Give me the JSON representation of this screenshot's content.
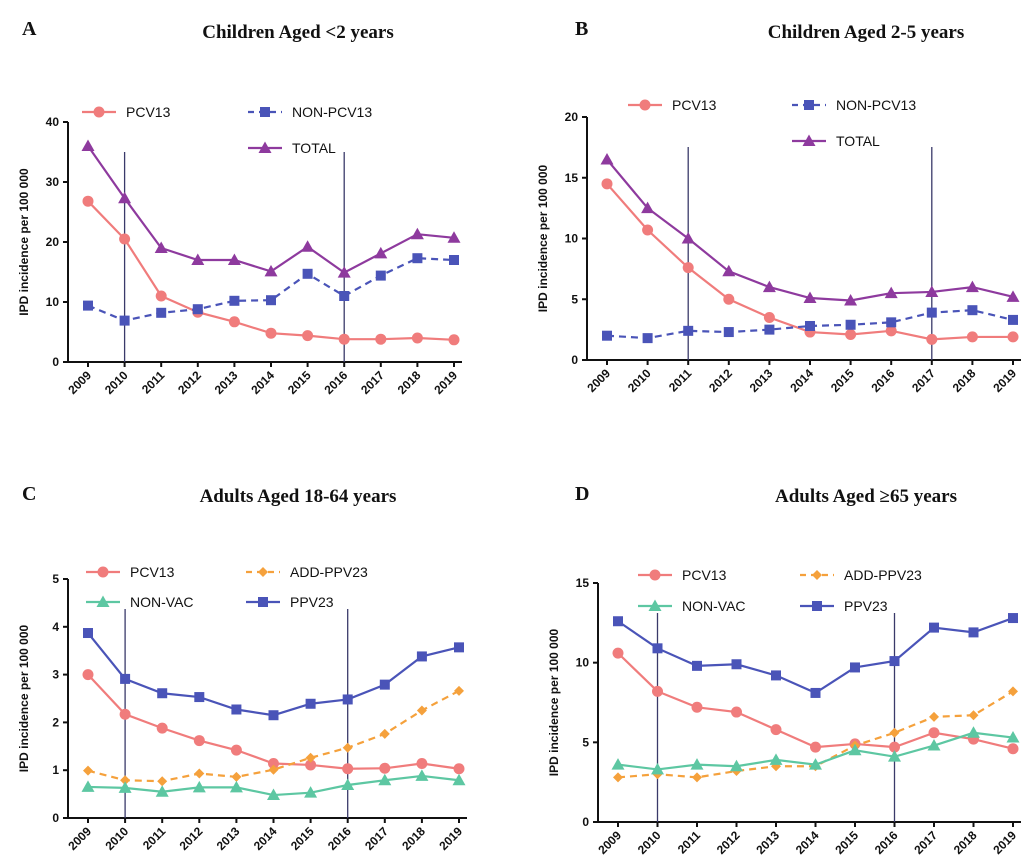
{
  "chart_data": [
    {
      "type": "line",
      "letter": "A",
      "title": "Children Aged <2 years",
      "ylabel": "IPD incidence per 100 000",
      "xlabel": "",
      "x": [
        "2009",
        "2010",
        "2011",
        "2012",
        "2013",
        "2014",
        "2015",
        "2016",
        "2017",
        "2018",
        "2019"
      ],
      "ylim": [
        0,
        40
      ],
      "yticks": [
        "0",
        "10",
        "20",
        "30",
        "40"
      ],
      "vlines": [
        "2010",
        "2016"
      ],
      "legend_position": "top",
      "series": [
        {
          "name": "PCV13",
          "color": "#f07c7c",
          "marker": "circle",
          "dashed": false,
          "values": [
            26.8,
            20.5,
            11.0,
            8.3,
            6.7,
            4.8,
            4.4,
            3.8,
            3.8,
            4.0,
            3.7
          ]
        },
        {
          "name": "NON-PCV13",
          "color": "#4a54b8",
          "marker": "square",
          "dashed": true,
          "values": [
            9.4,
            6.9,
            8.2,
            8.8,
            10.2,
            10.3,
            14.7,
            11.0,
            14.4,
            17.3,
            17.0
          ]
        },
        {
          "name": "TOTAL",
          "color": "#8e3a9e",
          "marker": "triangle",
          "dashed": false,
          "values": [
            36.0,
            27.3,
            19.0,
            17.0,
            17.0,
            15.1,
            19.2,
            14.9,
            18.1,
            21.3,
            20.7
          ]
        }
      ]
    },
    {
      "type": "line",
      "letter": "B",
      "title": "Children Aged 2-5 years",
      "ylabel": "IPD incidence per 100 000",
      "xlabel": "",
      "x": [
        "2009",
        "2010",
        "2011",
        "2012",
        "2013",
        "2014",
        "2015",
        "2016",
        "2017",
        "2018",
        "2019"
      ],
      "ylim": [
        0,
        20
      ],
      "yticks": [
        "0",
        "5",
        "10",
        "15",
        "20"
      ],
      "vlines": [
        "2011",
        "2017"
      ],
      "legend_position": "top",
      "series": [
        {
          "name": "PCV13",
          "color": "#f07c7c",
          "marker": "circle",
          "dashed": false,
          "values": [
            14.5,
            10.7,
            7.6,
            5.0,
            3.5,
            2.3,
            2.1,
            2.4,
            1.7,
            1.9,
            1.9
          ]
        },
        {
          "name": "NON-PCV13",
          "color": "#4a54b8",
          "marker": "square",
          "dashed": true,
          "values": [
            2.0,
            1.8,
            2.4,
            2.3,
            2.5,
            2.8,
            2.9,
            3.1,
            3.9,
            4.1,
            3.3
          ]
        },
        {
          "name": "TOTAL",
          "color": "#8e3a9e",
          "marker": "triangle",
          "dashed": false,
          "values": [
            16.5,
            12.5,
            10.0,
            7.3,
            6.0,
            5.1,
            4.9,
            5.5,
            5.6,
            6.0,
            5.2
          ]
        }
      ]
    },
    {
      "type": "line",
      "letter": "C",
      "title": "Adults Aged 18-64 years",
      "ylabel": "IPD incidence per 100 000",
      "xlabel": "",
      "x": [
        "2009",
        "2010",
        "2011",
        "2012",
        "2013",
        "2014",
        "2015",
        "2016",
        "2017",
        "2018",
        "2019"
      ],
      "ylim": [
        0,
        5
      ],
      "yticks": [
        "0",
        "1",
        "2",
        "3",
        "4",
        "5"
      ],
      "vlines": [
        "2010",
        "2016"
      ],
      "legend_position": "top",
      "series": [
        {
          "name": "PCV13",
          "color": "#f07c7c",
          "marker": "circle",
          "dashed": false,
          "values": [
            3.0,
            2.17,
            1.88,
            1.62,
            1.42,
            1.14,
            1.11,
            1.03,
            1.04,
            1.14,
            1.03
          ]
        },
        {
          "name": "ADD-PPV23",
          "color": "#f5a13c",
          "marker": "diamond",
          "dashed": true,
          "values": [
            0.99,
            0.79,
            0.77,
            0.93,
            0.86,
            1.01,
            1.26,
            1.47,
            1.76,
            2.25,
            2.66
          ]
        },
        {
          "name": "NON-VAC",
          "color": "#5dc7a2",
          "marker": "triangle",
          "dashed": false,
          "values": [
            0.65,
            0.63,
            0.55,
            0.64,
            0.64,
            0.48,
            0.53,
            0.69,
            0.79,
            0.88,
            0.79
          ]
        },
        {
          "name": "PPV23",
          "color": "#4a54b8",
          "marker": "square",
          "dashed": false,
          "values": [
            3.87,
            2.91,
            2.61,
            2.53,
            2.27,
            2.15,
            2.39,
            2.48,
            2.79,
            3.38,
            3.57
          ]
        }
      ]
    },
    {
      "type": "line",
      "letter": "D",
      "title": "Adults Aged ≥65 years",
      "ylabel": "IPD incidence per 100 000",
      "xlabel": "",
      "x": [
        "2009",
        "2010",
        "2011",
        "2012",
        "2013",
        "2014",
        "2015",
        "2016",
        "2017",
        "2018",
        "2019"
      ],
      "ylim": [
        0,
        15
      ],
      "yticks": [
        "0",
        "5",
        "10",
        "15"
      ],
      "vlines": [
        "2010",
        "2016"
      ],
      "legend_position": "top",
      "series": [
        {
          "name": "PCV13",
          "color": "#f07c7c",
          "marker": "circle",
          "dashed": false,
          "values": [
            10.6,
            8.2,
            7.2,
            6.9,
            5.8,
            4.7,
            4.9,
            4.7,
            5.6,
            5.2,
            4.6
          ]
        },
        {
          "name": "ADD-PPV23",
          "color": "#f5a13c",
          "marker": "diamond",
          "dashed": true,
          "values": [
            2.8,
            3.0,
            2.8,
            3.2,
            3.5,
            3.5,
            4.8,
            5.6,
            6.6,
            6.7,
            8.2
          ]
        },
        {
          "name": "NON-VAC",
          "color": "#5dc7a2",
          "marker": "triangle",
          "dashed": false,
          "values": [
            3.6,
            3.3,
            3.6,
            3.5,
            3.9,
            3.6,
            4.5,
            4.1,
            4.8,
            5.6,
            5.3
          ]
        },
        {
          "name": "PPV23",
          "color": "#4a54b8",
          "marker": "square",
          "dashed": false,
          "values": [
            12.6,
            10.9,
            9.8,
            9.9,
            9.2,
            8.1,
            9.7,
            10.1,
            12.2,
            11.9,
            12.8
          ]
        }
      ]
    }
  ]
}
